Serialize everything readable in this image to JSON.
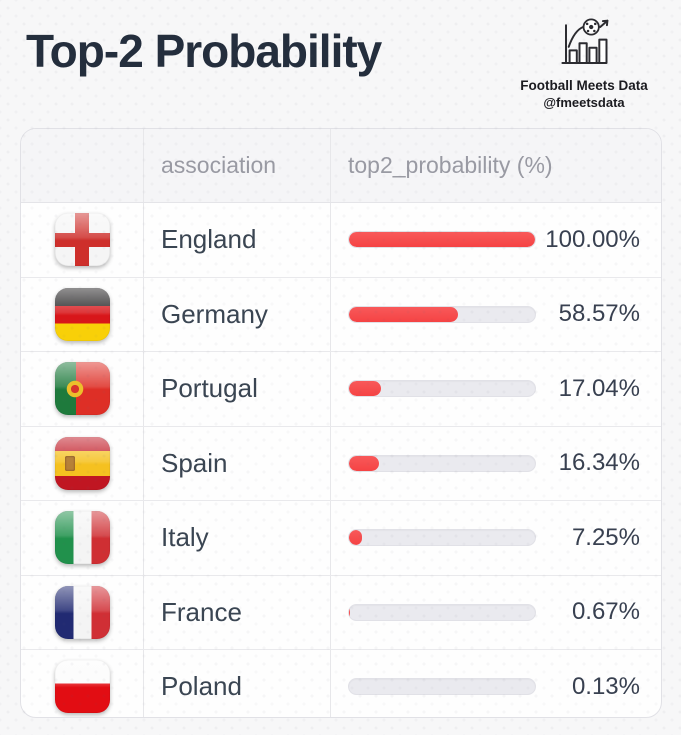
{
  "title": "Top-2 Probability",
  "brand": {
    "name": "Football Meets Data",
    "handle": "@fmeetsdata",
    "icon": "football-bar-chart-icon"
  },
  "table": {
    "header": {
      "flag": "",
      "association": "association",
      "probability": "top2_probability (%)"
    },
    "rows": [
      {
        "flag": "england",
        "association": "England",
        "top2_probability": 100.0,
        "display": "100.00%"
      },
      {
        "flag": "germany",
        "association": "Germany",
        "top2_probability": 58.57,
        "display": "58.57%"
      },
      {
        "flag": "portugal",
        "association": "Portugal",
        "top2_probability": 17.04,
        "display": "17.04%"
      },
      {
        "flag": "spain",
        "association": "Spain",
        "top2_probability": 16.34,
        "display": "16.34%"
      },
      {
        "flag": "italy",
        "association": "Italy",
        "top2_probability": 7.25,
        "display": "7.25%"
      },
      {
        "flag": "france",
        "association": "France",
        "top2_probability": 0.67,
        "display": "0.67%"
      },
      {
        "flag": "poland",
        "association": "Poland",
        "top2_probability": 0.13,
        "display": "0.13%"
      }
    ]
  },
  "colors": {
    "bar_fill": "#f54547",
    "bar_track": "#eaeaef",
    "title_text": "#242e3d",
    "header_text": "#999aa3",
    "body_text": "#3a4552"
  },
  "chart_data": {
    "type": "bar",
    "orientation": "horizontal",
    "title": "Top-2 Probability",
    "categories": [
      "England",
      "Germany",
      "Portugal",
      "Spain",
      "Italy",
      "France",
      "Poland"
    ],
    "values": [
      100.0,
      58.57,
      17.04,
      16.34,
      7.25,
      0.67,
      0.13
    ],
    "value_labels": [
      "100.00%",
      "58.57%",
      "17.04%",
      "16.34%",
      "7.25%",
      "0.67%",
      "0.13%"
    ],
    "xlabel": "top2_probability (%)",
    "ylabel": "association",
    "xlim": [
      0,
      100
    ],
    "grid": false,
    "legend": false,
    "bar_color": "#f54547",
    "track_color": "#eaeaef"
  }
}
